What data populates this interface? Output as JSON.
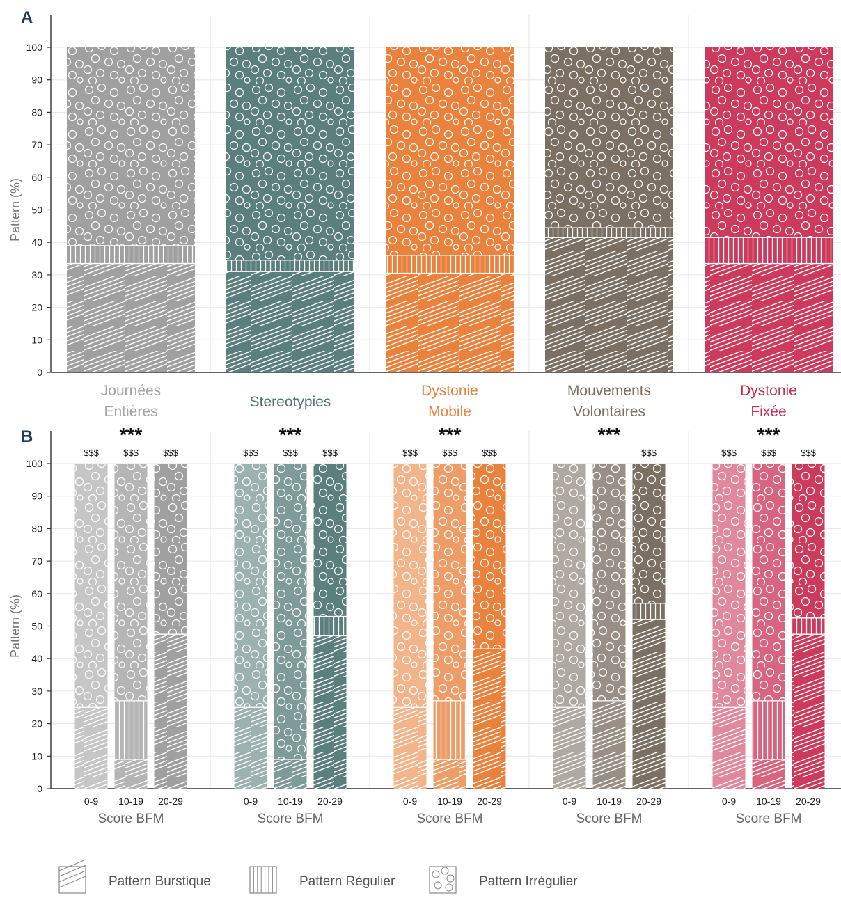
{
  "colors": {
    "gray": "#a0a0a0",
    "teal": "#5a7f7c",
    "orange": "#e8823d",
    "brown": "#7c7064",
    "crimson": "#cc3a5c",
    "grid": "#e6e6e6",
    "axis": "#333333",
    "label_gray": "#a3a3a3",
    "label_teal": "#4f7573",
    "label_orange": "#e8823d",
    "label_brown": "#7a6e62",
    "label_crimson": "#c0304f"
  },
  "legend": [
    {
      "pattern": "burst",
      "label": "Pattern Burstique"
    },
    {
      "pattern": "regular",
      "label": "Pattern Régulier"
    },
    {
      "pattern": "irregular",
      "label": "Pattern Irrégulier"
    }
  ],
  "chart_data": [
    {
      "panel_label": "A",
      "type": "bar",
      "stacked": true,
      "ylabel": "Pattern (%)",
      "ylim": [
        0,
        100
      ],
      "yticks": [
        0,
        10,
        20,
        30,
        40,
        50,
        60,
        70,
        80,
        90,
        100
      ],
      "grid": true,
      "categories": [
        {
          "label_lines": [
            "Journées",
            "Entières"
          ],
          "color": "gray"
        },
        {
          "label_lines": [
            "Stereotypies"
          ],
          "color": "teal"
        },
        {
          "label_lines": [
            "Dystonie",
            "Mobile"
          ],
          "color": "orange"
        },
        {
          "label_lines": [
            "Mouvements",
            "Volontaires"
          ],
          "color": "brown"
        },
        {
          "label_lines": [
            "Dystonie",
            "Fixée"
          ],
          "color": "crimson"
        }
      ],
      "series": [
        {
          "pattern": "burst",
          "values": [
            33.5,
            31,
            30.5,
            41.5,
            33.5
          ]
        },
        {
          "pattern": "regular",
          "values": [
            5.5,
            3.5,
            5.5,
            3,
            8
          ]
        },
        {
          "pattern": "irregular",
          "values": [
            61,
            65.5,
            64,
            55.5,
            58.5
          ]
        }
      ]
    },
    {
      "panel_label": "B",
      "type": "bar",
      "stacked": true,
      "ylabel": "Pattern (%)",
      "ylim": [
        0,
        100
      ],
      "yticks": [
        0,
        10,
        20,
        30,
        40,
        50,
        60,
        70,
        80,
        90,
        100
      ],
      "grid": true,
      "group_xlabel": "Score BFM",
      "subcategories": [
        "0-9",
        "10-19",
        "20-29"
      ],
      "groups": [
        {
          "color": "gray",
          "significance": "***",
          "bar_marks": [
            "$$$",
            "$$$",
            "$$$"
          ],
          "burst": [
            25,
            9,
            47.5
          ],
          "regular": [
            0,
            18,
            0
          ],
          "irregular": [
            75,
            73,
            52.5
          ]
        },
        {
          "color": "teal",
          "significance": "***",
          "bar_marks": [
            "$$$",
            "$$$",
            "$$$"
          ],
          "burst": [
            25,
            9,
            47
          ],
          "regular": [
            0,
            0,
            6
          ],
          "irregular": [
            75,
            91,
            47
          ]
        },
        {
          "color": "orange",
          "significance": "***",
          "bar_marks": [
            "$$$",
            "$$$",
            "$$$"
          ],
          "burst": [
            25,
            9,
            43
          ],
          "regular": [
            0,
            18,
            0
          ],
          "irregular": [
            75,
            73,
            57
          ]
        },
        {
          "color": "brown",
          "significance": "***",
          "bar_marks": [
            "",
            "",
            "$$$"
          ],
          "burst": [
            25,
            27,
            52
          ],
          "regular": [
            0,
            0,
            5
          ],
          "irregular": [
            75,
            73,
            43
          ]
        },
        {
          "color": "crimson",
          "significance": "***",
          "bar_marks": [
            "$$$",
            "$$$",
            "$$$"
          ],
          "burst": [
            25,
            9,
            47.5
          ],
          "regular": [
            0,
            18,
            5
          ],
          "irregular": [
            75,
            73,
            47.5
          ]
        }
      ]
    }
  ]
}
